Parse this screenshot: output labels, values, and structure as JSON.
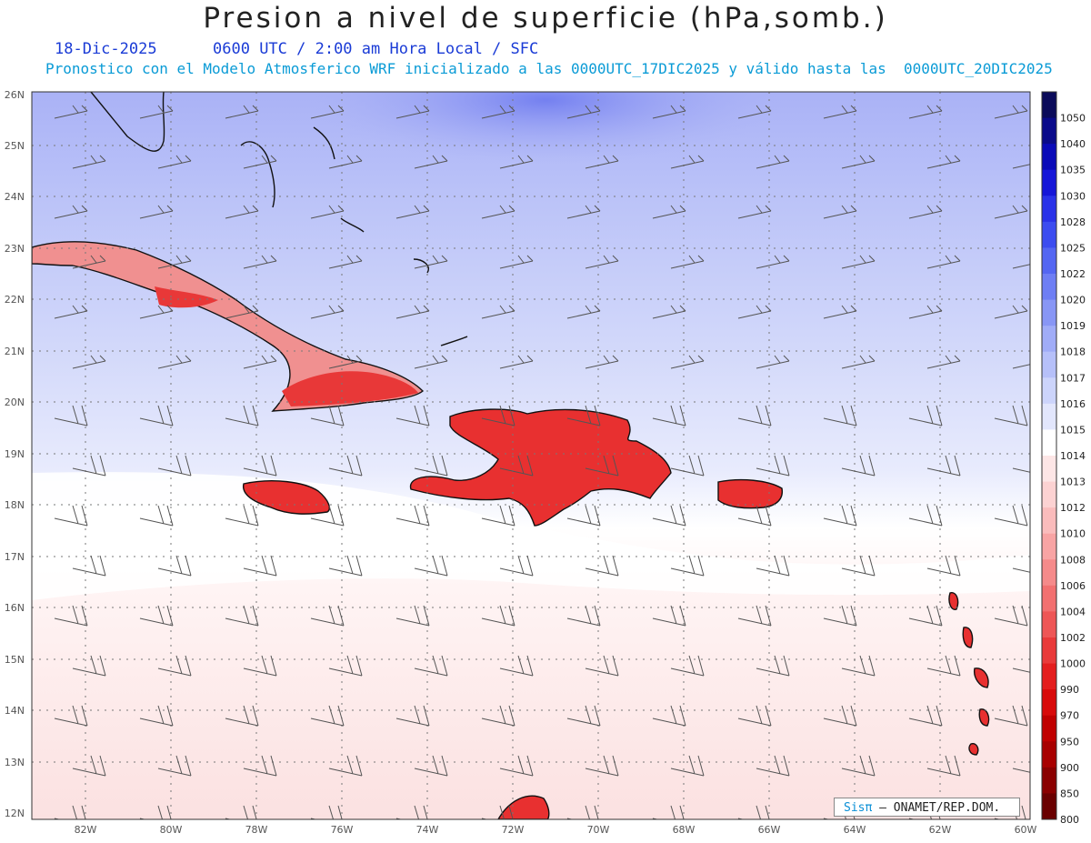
{
  "title": "Presion a nivel de superficie (hPa,somb.)",
  "date": "18-Dic-2025",
  "valid_time": "0600 UTC / 2:00 am Hora Local / SFC",
  "subtitle": "Pronostico con el Modelo Atmosferico WRF inicializado a las 0000UTC_17DIC2025 y válido hasta las  0000UTC_20DIC2025",
  "credit": {
    "brand": "Sisπ",
    "org": "– ONAMET/REP.DOM."
  },
  "lat_labels": [
    "26N",
    "25N",
    "24N",
    "23N",
    "22N",
    "21N",
    "20N",
    "19N",
    "18N",
    "17N",
    "16N",
    "15N",
    "14N",
    "13N",
    "12N"
  ],
  "lon_labels": [
    "82W",
    "80W",
    "78W",
    "76W",
    "74W",
    "72W",
    "70W",
    "68W",
    "66W",
    "64W",
    "62W",
    "60W"
  ],
  "colorbar": {
    "levels": [
      "1050",
      "1040",
      "1035",
      "1030",
      "1028",
      "1025",
      "1022",
      "1020",
      "1019",
      "1018",
      "1017",
      "1016",
      "1015",
      "1014",
      "1013",
      "1012",
      "1010",
      "1008",
      "1006",
      "1004",
      "1002",
      "1000",
      "990",
      "970",
      "950",
      "900",
      "850",
      "800"
    ],
    "colors": [
      "#0b0b5a",
      "#0a0a8a",
      "#0a0ab8",
      "#1616d8",
      "#2a32e8",
      "#3c4cf0",
      "#5466f2",
      "#6e7ef4",
      "#8896f5",
      "#a0acf7",
      "#b6c0f9",
      "#ccd4fb",
      "#e2e6fc",
      "#ffffff",
      "#fde6e6",
      "#fcd2d2",
      "#fabcbc",
      "#f8a4a4",
      "#f58a8a",
      "#f27070",
      "#ee5656",
      "#e93a3a",
      "#e41e1e",
      "#d80a0a",
      "#c00000",
      "#a80000",
      "#8a0000",
      "#6a0000"
    ]
  },
  "legend_colors": {
    "ocean_high": "#8a92f4",
    "ocean_mid": "#d4daf8",
    "ocean_low": "#fde8e8",
    "land": "#e83030"
  }
}
